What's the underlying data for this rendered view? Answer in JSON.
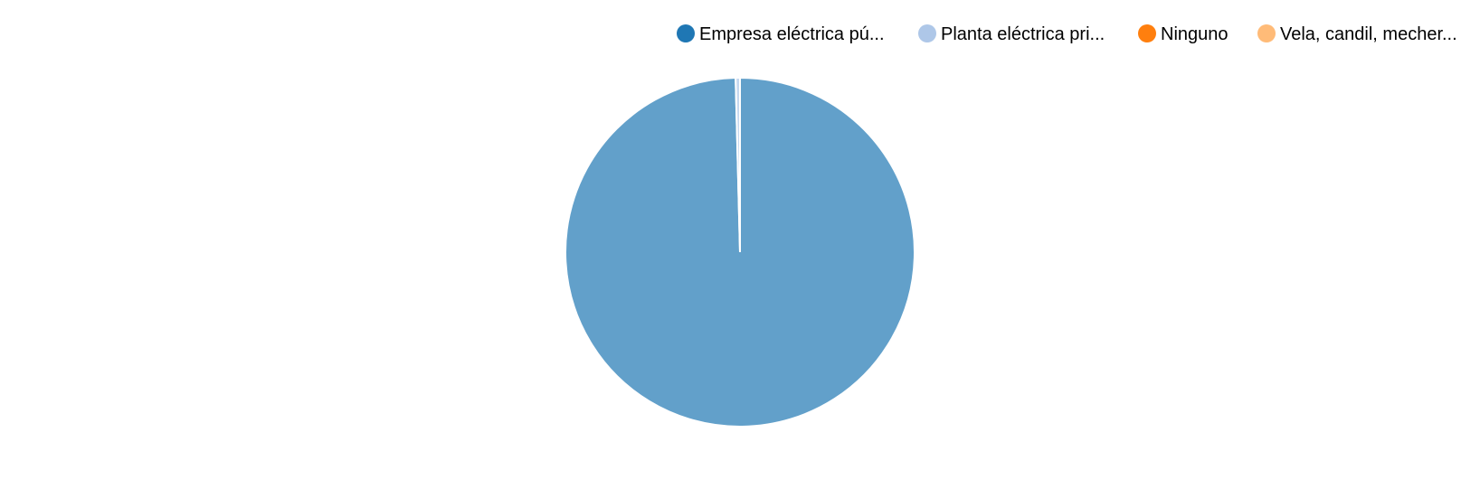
{
  "chart_data": {
    "type": "pie",
    "title": "",
    "legend_position": "top-right",
    "categories": [
      "Empresa eléctrica pú...",
      "Planta eléctrica pri...",
      "Ninguno",
      "Vela, candil, mecher..."
    ],
    "values": [
      99.6,
      0.4,
      0,
      0
    ],
    "colors": [
      "#1f77b4",
      "#aec7e8",
      "#ff7f0e",
      "#ffbb78"
    ],
    "slice_opacity": 0.7,
    "start_angle_deg": 0,
    "direction": "clockwise"
  }
}
